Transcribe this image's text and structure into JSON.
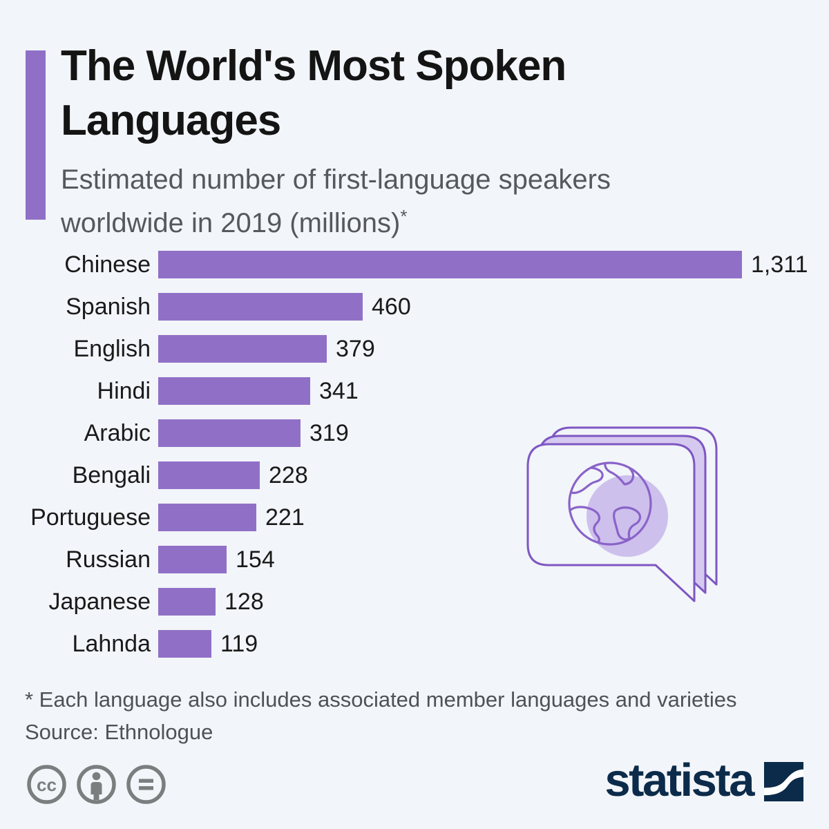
{
  "title": {
    "line1": "The World's Most Spoken",
    "line2": "Languages"
  },
  "subtitle": {
    "line1": "Estimated number of first-language speakers",
    "line2": "worldwide in 2019 (millions)",
    "asterisk": "*"
  },
  "chart_data": {
    "type": "bar",
    "orientation": "horizontal",
    "title": "The World's Most Spoken Languages",
    "subtitle": "Estimated number of first-language speakers worldwide in 2019 (millions)*",
    "unit": "millions of first-language speakers",
    "categories": [
      "Chinese",
      "Spanish",
      "English",
      "Hindi",
      "Arabic",
      "Bengali",
      "Portuguese",
      "Russian",
      "Japanese",
      "Lahnda"
    ],
    "values": [
      1311,
      460,
      379,
      341,
      319,
      228,
      221,
      154,
      128,
      119
    ],
    "display_values": [
      "1,311",
      "460",
      "379",
      "341",
      "319",
      "228",
      "221",
      "154",
      "128",
      "119"
    ],
    "xlim": [
      0,
      1311
    ],
    "grid": false,
    "legend": false,
    "bar_color": "#9070c7"
  },
  "footnote": "* Each language also includes associated member languages and varieties",
  "source": "Source: Ethnologue",
  "footer": {
    "license_icons": [
      "cc-icon",
      "attribution-person-icon",
      "equals-icon"
    ],
    "cc_label": "cc",
    "brand": "statista"
  },
  "colors": {
    "background": "#f2f5f9",
    "bar": "#9070c7",
    "accent_bar": "#9070c7",
    "title_text": "#141414",
    "subtitle_text": "#55595e",
    "footnote_text": "#4e5256",
    "license_gray": "#7a7e7f",
    "brand_navy": "#0c2b4a",
    "illustration_outline": "#7e57c2",
    "illustration_fill": "#d5c9f0",
    "globe_shadow_fill": "#cdc0ec"
  }
}
